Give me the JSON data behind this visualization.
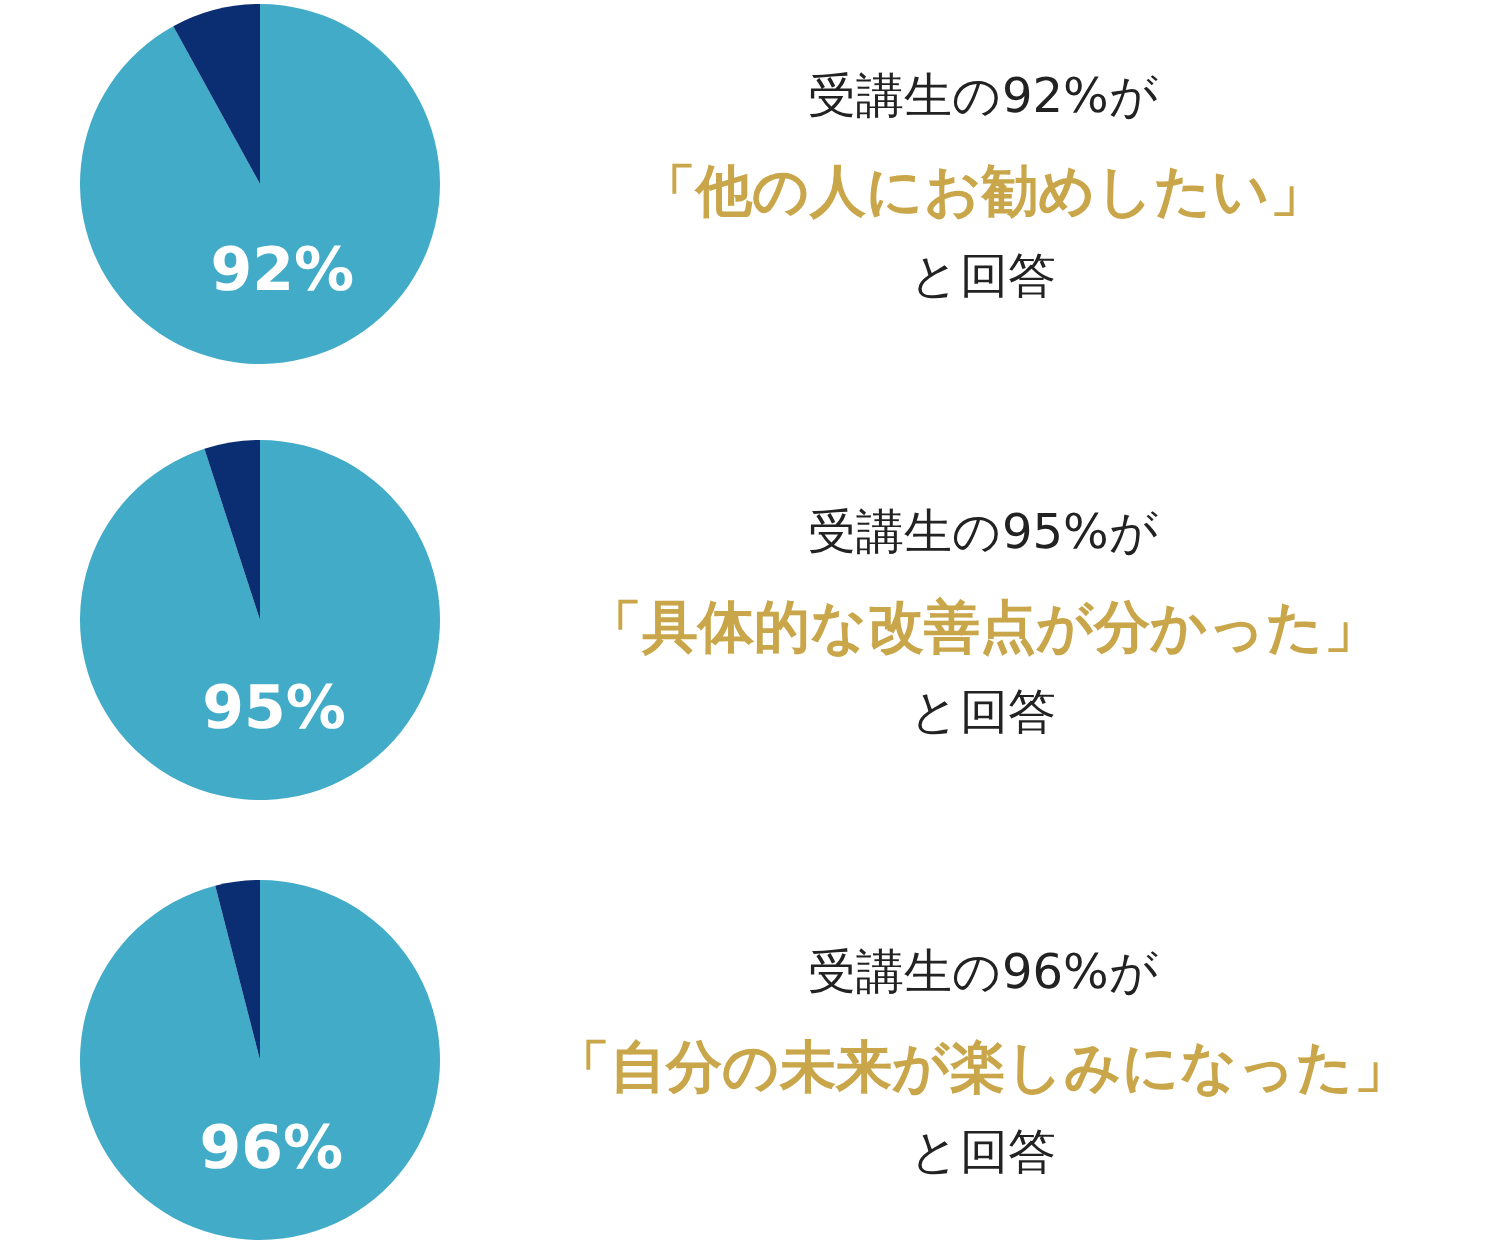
{
  "chart_data": [
    {
      "type": "pie",
      "categories": [
        null,
        null
      ],
      "values": [
        92,
        8
      ],
      "colors": [
        "#42abc7",
        "#0b2d72"
      ],
      "value_labels": [
        "92%",
        null
      ],
      "legend": false,
      "annotations": [
        "受講生の92%が",
        "「他の人にお勧めしたい」",
        "と回答"
      ]
    },
    {
      "type": "pie",
      "categories": [
        null,
        null
      ],
      "values": [
        95,
        5
      ],
      "colors": [
        "#42abc7",
        "#0b2d72"
      ],
      "value_labels": [
        "95%",
        null
      ],
      "legend": false,
      "annotations": [
        "受講生の95%が",
        "「具体的な改善点が分かった」",
        "と回答"
      ]
    },
    {
      "type": "pie",
      "categories": [
        null,
        null
      ],
      "values": [
        96,
        4
      ],
      "colors": [
        "#42abc7",
        "#0b2d72"
      ],
      "value_labels": [
        "96%",
        null
      ],
      "legend": false,
      "annotations": [
        "受講生の96%が",
        "「自分の未来が楽しみになった」",
        "と回答"
      ]
    }
  ]
}
